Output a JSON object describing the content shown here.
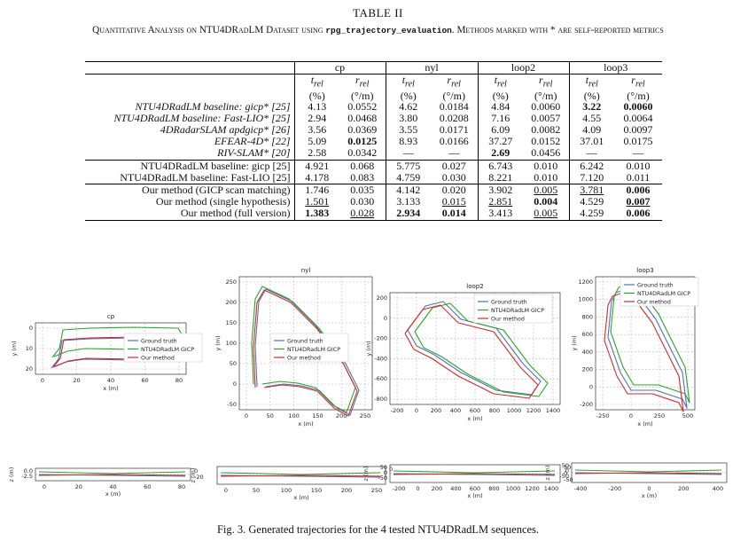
{
  "table": {
    "label": "TABLE II",
    "caption_a": "Quantitative Analysis on NTU4DRadLM Dataset using ",
    "caption_code": "rpg_trajectory_evaluation",
    "caption_b": ". Methods marked with * are self-reported metrics",
    "groups": [
      "cp",
      "nyl",
      "loop2",
      "loop3"
    ],
    "sub_t": "t",
    "sub_r": "r",
    "sub_rel": "rel",
    "unit_t": "(%)",
    "unit_r": "(°/m)",
    "rows": [
      {
        "name": "NTU4DRadLM baseline: gicp* [25]",
        "vals": [
          "4.13",
          "0.0552",
          "4.62",
          "0.0184",
          "4.84",
          "0.0060",
          "3.22",
          "0.0060"
        ]
      },
      {
        "name": "NTU4DRadLM baseline: Fast-LIO* [25]",
        "vals": [
          "2.94",
          "0.0468",
          "3.80",
          "0.0208",
          "7.16",
          "0.0057",
          "4.55",
          "0.0064"
        ]
      },
      {
        "name": "4DRadarSLAM apdgicp* [26]",
        "vals": [
          "3.56",
          "0.0369",
          "3.55",
          "0.0171",
          "6.09",
          "0.0082",
          "4.09",
          "0.0097"
        ]
      },
      {
        "name": "EFEAR-4D* [22]",
        "vals": [
          "5.09",
          "0.0125",
          "8.93",
          "0.0166",
          "37.27",
          "0.0152",
          "37.01",
          "0.0175"
        ]
      },
      {
        "name": "RIV-SLAM* [20]",
        "vals": [
          "2.58",
          "0.0342",
          "—",
          "—",
          "2.69",
          "0.0456",
          "—",
          "—"
        ]
      },
      {
        "name": "NTU4DRadLM baseline: gicp [25]",
        "vals": [
          "4.921",
          "0.068",
          "5.775",
          "0.027",
          "6.743",
          "0.010",
          "6.242",
          "0.010"
        ]
      },
      {
        "name": "NTU4DRadLM baseline: Fast-LIO [25]",
        "vals": [
          "4.178",
          "0.083",
          "4.759",
          "0.030",
          "8.221",
          "0.010",
          "7.120",
          "0.011"
        ]
      },
      {
        "name": "Our method (GICP scan matching)",
        "vals": [
          "1.746",
          "0.035",
          "4.142",
          "0.020",
          "3.902",
          "0.005",
          "3.781",
          "0.006"
        ]
      },
      {
        "name": "Our method (single hypothesis)",
        "vals": [
          "1.501",
          "0.030",
          "3.133",
          "0.015",
          "2.851",
          "0.004",
          "4.529",
          "0.007"
        ]
      },
      {
        "name": "Our method (full version)",
        "vals": [
          "1.383",
          "0.028",
          "2.934",
          "0.014",
          "3.413",
          "0.005",
          "4.259",
          "0.006"
        ]
      }
    ]
  },
  "figure": {
    "caption": "Fig. 3.   Generated trajectories for the 4 tested NTU4DRadLM sequences.",
    "legend": [
      "Ground truth",
      "NTU4DRadLM GICP",
      "Our method"
    ],
    "colors": {
      "gt": "#4c72b0",
      "gicp": "#2ca02c",
      "ours": "#d62728"
    },
    "x_label": "x (m)",
    "y_label": "y (m)",
    "z_label": "z (m)",
    "plots": [
      {
        "title": "cp",
        "xticks": [
          "0",
          "20",
          "40",
          "60",
          "80"
        ],
        "yticks": [
          "0",
          "10",
          "20"
        ],
        "zticks": [
          "0.0",
          "-2.5"
        ],
        "zxticks": [
          "0",
          "20",
          "40",
          "60",
          "80"
        ],
        "zright": [
          "0",
          "-20"
        ]
      },
      {
        "title": "nyl",
        "xticks": [
          "0",
          "50",
          "100",
          "150",
          "200",
          "250"
        ],
        "yticks": [
          "250",
          "200",
          "150",
          "100",
          "50",
          "0",
          "-50"
        ],
        "zticks": [],
        "zxticks": [
          "0",
          "50",
          "100",
          "150",
          "200",
          "250"
        ],
        "zright": [
          "0"
        ]
      },
      {
        "title": "loop2",
        "xticks": [
          "-200",
          "0",
          "200",
          "400",
          "600",
          "800",
          "1000",
          "1200",
          "1400"
        ],
        "yticks": [
          "200",
          "0",
          "-200",
          "-400",
          "-600",
          "-800"
        ],
        "zticks": [
          "50",
          "0",
          "-50"
        ],
        "zxticks": [
          "-200",
          "0",
          "200",
          "400",
          "600",
          "800",
          "1000",
          "1200",
          "1400"
        ],
        "zright": [
          "50",
          "0",
          "-50"
        ]
      },
      {
        "title": "loop3",
        "xticks": [
          "-250",
          "0",
          "250",
          "500"
        ],
        "yticks": [
          "1200",
          "1000",
          "800",
          "600",
          "400",
          "200",
          "0",
          "-200"
        ],
        "zticks": [
          "50",
          "0",
          "-50"
        ],
        "zxticks": [
          "-400",
          "-200",
          "0",
          "200",
          "400"
        ],
        "zright": []
      }
    ]
  }
}
